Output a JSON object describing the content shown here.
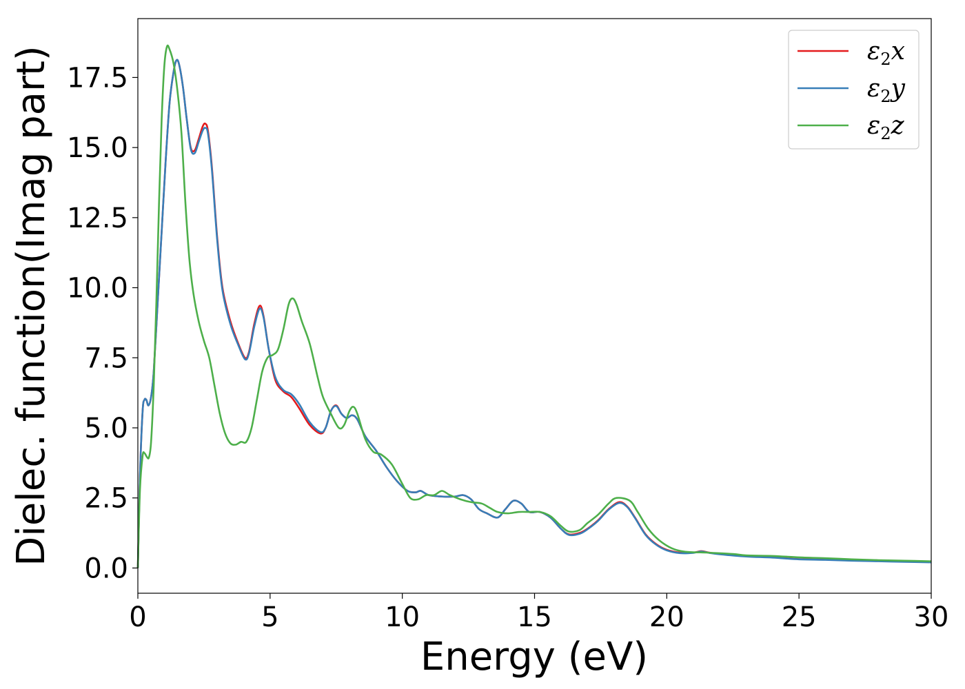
{
  "chart_data": {
    "type": "line",
    "xlabel": "Energy (eV)",
    "ylabel": "Dielec. function(Imag part)",
    "xlim": [
      0,
      30
    ],
    "ylim": [
      -0.9,
      19.6
    ],
    "xticks": [
      0,
      5,
      10,
      15,
      20,
      25,
      30
    ],
    "xtick_labels": [
      "0",
      "5",
      "10",
      "15",
      "20",
      "25",
      "30"
    ],
    "yticks": [
      0,
      2.5,
      5,
      7.5,
      10,
      12.5,
      15,
      17.5
    ],
    "ytick_labels": [
      "0.0",
      "2.5",
      "5.0",
      "7.5",
      "10.0",
      "12.5",
      "15.0",
      "17.5"
    ],
    "grid": false,
    "legend_position": "top-right",
    "series": [
      {
        "name_base": "ε",
        "name_sub": "2",
        "name_axis": "x",
        "color": "#e41a1c",
        "points": [
          [
            0,
            0
          ],
          [
            0.08,
            3.3
          ],
          [
            0.18,
            5.6
          ],
          [
            0.25,
            6.0
          ],
          [
            0.32,
            6.0
          ],
          [
            0.4,
            5.8
          ],
          [
            0.5,
            6.1
          ],
          [
            0.6,
            7.0
          ],
          [
            0.75,
            9.5
          ],
          [
            0.9,
            12.0
          ],
          [
            1.05,
            14.5
          ],
          [
            1.2,
            16.6
          ],
          [
            1.35,
            17.7
          ],
          [
            1.45,
            18.1
          ],
          [
            1.55,
            18.0
          ],
          [
            1.7,
            17.2
          ],
          [
            1.85,
            16.0
          ],
          [
            2.0,
            15.0
          ],
          [
            2.15,
            14.9
          ],
          [
            2.3,
            15.3
          ],
          [
            2.45,
            15.75
          ],
          [
            2.55,
            15.85
          ],
          [
            2.65,
            15.6
          ],
          [
            2.8,
            14.3
          ],
          [
            3.0,
            11.8
          ],
          [
            3.2,
            10.0
          ],
          [
            3.5,
            8.8
          ],
          [
            3.8,
            8.0
          ],
          [
            4.05,
            7.5
          ],
          [
            4.2,
            7.7
          ],
          [
            4.4,
            8.7
          ],
          [
            4.6,
            9.35
          ],
          [
            4.75,
            9.0
          ],
          [
            4.95,
            7.8
          ],
          [
            5.2,
            6.7
          ],
          [
            5.5,
            6.3
          ],
          [
            5.8,
            6.1
          ],
          [
            6.1,
            5.7
          ],
          [
            6.5,
            5.1
          ],
          [
            6.9,
            4.8
          ],
          [
            7.1,
            5.0
          ],
          [
            7.3,
            5.6
          ],
          [
            7.5,
            5.8
          ],
          [
            7.7,
            5.5
          ],
          [
            7.9,
            5.35
          ],
          [
            8.1,
            5.45
          ],
          [
            8.3,
            5.3
          ],
          [
            8.6,
            4.7
          ],
          [
            9.0,
            4.2
          ],
          [
            9.4,
            3.6
          ],
          [
            9.8,
            3.1
          ],
          [
            10.2,
            2.75
          ],
          [
            10.5,
            2.7
          ],
          [
            10.7,
            2.75
          ],
          [
            11.0,
            2.6
          ],
          [
            11.5,
            2.55
          ],
          [
            12.0,
            2.55
          ],
          [
            12.3,
            2.6
          ],
          [
            12.6,
            2.45
          ],
          [
            12.9,
            2.1
          ],
          [
            13.2,
            1.95
          ],
          [
            13.6,
            1.8
          ],
          [
            13.9,
            2.1
          ],
          [
            14.2,
            2.4
          ],
          [
            14.5,
            2.3
          ],
          [
            14.8,
            2.0
          ],
          [
            15.2,
            2.0
          ],
          [
            15.6,
            1.8
          ],
          [
            16.0,
            1.4
          ],
          [
            16.3,
            1.2
          ],
          [
            16.7,
            1.25
          ],
          [
            17.0,
            1.4
          ],
          [
            17.4,
            1.7
          ],
          [
            17.8,
            2.1
          ],
          [
            18.2,
            2.35
          ],
          [
            18.5,
            2.2
          ],
          [
            18.8,
            1.8
          ],
          [
            19.2,
            1.2
          ],
          [
            19.6,
            0.85
          ],
          [
            20.0,
            0.65
          ],
          [
            20.5,
            0.55
          ],
          [
            21.0,
            0.55
          ],
          [
            21.3,
            0.6
          ],
          [
            21.6,
            0.55
          ],
          [
            22.0,
            0.5
          ],
          [
            23.0,
            0.42
          ],
          [
            24.0,
            0.38
          ],
          [
            25.0,
            0.32
          ],
          [
            26.0,
            0.3
          ],
          [
            27.0,
            0.27
          ],
          [
            28.0,
            0.25
          ],
          [
            29.0,
            0.23
          ],
          [
            30.0,
            0.21
          ]
        ]
      },
      {
        "name_base": "ε",
        "name_sub": "2",
        "name_axis": "y",
        "color": "#377eb8",
        "points": [
          [
            0,
            0
          ],
          [
            0.08,
            3.3
          ],
          [
            0.18,
            5.6
          ],
          [
            0.25,
            6.0
          ],
          [
            0.32,
            6.0
          ],
          [
            0.4,
            5.8
          ],
          [
            0.5,
            6.1
          ],
          [
            0.6,
            7.0
          ],
          [
            0.75,
            9.5
          ],
          [
            0.9,
            12.0
          ],
          [
            1.05,
            14.5
          ],
          [
            1.2,
            16.6
          ],
          [
            1.35,
            17.7
          ],
          [
            1.45,
            18.1
          ],
          [
            1.55,
            18.0
          ],
          [
            1.7,
            17.2
          ],
          [
            1.85,
            16.0
          ],
          [
            2.0,
            14.95
          ],
          [
            2.15,
            14.8
          ],
          [
            2.3,
            15.2
          ],
          [
            2.45,
            15.6
          ],
          [
            2.55,
            15.7
          ],
          [
            2.65,
            15.5
          ],
          [
            2.8,
            14.2
          ],
          [
            3.0,
            11.7
          ],
          [
            3.2,
            9.9
          ],
          [
            3.5,
            8.7
          ],
          [
            3.8,
            7.95
          ],
          [
            4.05,
            7.45
          ],
          [
            4.2,
            7.65
          ],
          [
            4.4,
            8.6
          ],
          [
            4.6,
            9.25
          ],
          [
            4.75,
            8.95
          ],
          [
            4.95,
            7.8
          ],
          [
            5.2,
            6.8
          ],
          [
            5.5,
            6.35
          ],
          [
            5.8,
            6.2
          ],
          [
            6.1,
            5.85
          ],
          [
            6.5,
            5.2
          ],
          [
            6.9,
            4.85
          ],
          [
            7.1,
            5.0
          ],
          [
            7.3,
            5.6
          ],
          [
            7.5,
            5.78
          ],
          [
            7.7,
            5.5
          ],
          [
            7.9,
            5.35
          ],
          [
            8.1,
            5.45
          ],
          [
            8.3,
            5.3
          ],
          [
            8.6,
            4.7
          ],
          [
            9.0,
            4.2
          ],
          [
            9.4,
            3.6
          ],
          [
            9.8,
            3.1
          ],
          [
            10.2,
            2.75
          ],
          [
            10.5,
            2.7
          ],
          [
            10.7,
            2.75
          ],
          [
            11.0,
            2.6
          ],
          [
            11.5,
            2.55
          ],
          [
            12.0,
            2.55
          ],
          [
            12.3,
            2.6
          ],
          [
            12.6,
            2.45
          ],
          [
            12.9,
            2.1
          ],
          [
            13.2,
            1.95
          ],
          [
            13.6,
            1.8
          ],
          [
            13.9,
            2.1
          ],
          [
            14.2,
            2.4
          ],
          [
            14.5,
            2.3
          ],
          [
            14.8,
            2.0
          ],
          [
            15.2,
            2.0
          ],
          [
            15.6,
            1.8
          ],
          [
            16.0,
            1.4
          ],
          [
            16.3,
            1.18
          ],
          [
            16.7,
            1.22
          ],
          [
            17.0,
            1.38
          ],
          [
            17.4,
            1.68
          ],
          [
            17.8,
            2.08
          ],
          [
            18.2,
            2.32
          ],
          [
            18.5,
            2.18
          ],
          [
            18.8,
            1.78
          ],
          [
            19.2,
            1.18
          ],
          [
            19.6,
            0.83
          ],
          [
            20.0,
            0.63
          ],
          [
            20.5,
            0.53
          ],
          [
            21.0,
            0.54
          ],
          [
            21.3,
            0.59
          ],
          [
            21.6,
            0.54
          ],
          [
            22.0,
            0.49
          ],
          [
            23.0,
            0.41
          ],
          [
            24.0,
            0.37
          ],
          [
            25.0,
            0.31
          ],
          [
            26.0,
            0.29
          ],
          [
            27.0,
            0.26
          ],
          [
            28.0,
            0.24
          ],
          [
            29.0,
            0.22
          ],
          [
            30.0,
            0.2
          ]
        ]
      },
      {
        "name_base": "ε",
        "name_sub": "2",
        "name_axis": "z",
        "color": "#4daf4a",
        "points": [
          [
            0,
            0
          ],
          [
            0.08,
            2.8
          ],
          [
            0.18,
            4.0
          ],
          [
            0.25,
            4.1
          ],
          [
            0.35,
            3.95
          ],
          [
            0.42,
            3.95
          ],
          [
            0.5,
            4.5
          ],
          [
            0.6,
            6.5
          ],
          [
            0.7,
            9.5
          ],
          [
            0.8,
            13.0
          ],
          [
            0.9,
            16.0
          ],
          [
            1.0,
            17.9
          ],
          [
            1.1,
            18.6
          ],
          [
            1.2,
            18.5
          ],
          [
            1.35,
            18.0
          ],
          [
            1.5,
            17.0
          ],
          [
            1.65,
            15.5
          ],
          [
            1.8,
            13.0
          ],
          [
            1.95,
            11.0
          ],
          [
            2.1,
            9.8
          ],
          [
            2.3,
            8.8
          ],
          [
            2.5,
            8.1
          ],
          [
            2.7,
            7.5
          ],
          [
            2.9,
            6.5
          ],
          [
            3.1,
            5.5
          ],
          [
            3.3,
            4.8
          ],
          [
            3.5,
            4.45
          ],
          [
            3.7,
            4.4
          ],
          [
            3.9,
            4.5
          ],
          [
            4.1,
            4.5
          ],
          [
            4.3,
            5.0
          ],
          [
            4.5,
            6.0
          ],
          [
            4.7,
            7.0
          ],
          [
            4.9,
            7.5
          ],
          [
            5.1,
            7.6
          ],
          [
            5.3,
            7.8
          ],
          [
            5.5,
            8.5
          ],
          [
            5.7,
            9.4
          ],
          [
            5.85,
            9.62
          ],
          [
            6.0,
            9.4
          ],
          [
            6.2,
            8.8
          ],
          [
            6.5,
            8.0
          ],
          [
            6.8,
            6.8
          ],
          [
            7.0,
            6.1
          ],
          [
            7.3,
            5.5
          ],
          [
            7.6,
            5.0
          ],
          [
            7.8,
            5.1
          ],
          [
            8.0,
            5.6
          ],
          [
            8.15,
            5.75
          ],
          [
            8.3,
            5.5
          ],
          [
            8.6,
            4.6
          ],
          [
            8.9,
            4.15
          ],
          [
            9.2,
            4.05
          ],
          [
            9.6,
            3.7
          ],
          [
            10.0,
            3.0
          ],
          [
            10.3,
            2.5
          ],
          [
            10.6,
            2.45
          ],
          [
            10.9,
            2.6
          ],
          [
            11.2,
            2.6
          ],
          [
            11.5,
            2.75
          ],
          [
            11.8,
            2.6
          ],
          [
            12.2,
            2.45
          ],
          [
            12.6,
            2.35
          ],
          [
            13.0,
            2.3
          ],
          [
            13.3,
            2.15
          ],
          [
            13.6,
            2.0
          ],
          [
            14.0,
            1.95
          ],
          [
            14.4,
            2.0
          ],
          [
            14.8,
            2.0
          ],
          [
            15.2,
            2.0
          ],
          [
            15.6,
            1.85
          ],
          [
            16.0,
            1.5
          ],
          [
            16.3,
            1.3
          ],
          [
            16.7,
            1.35
          ],
          [
            17.0,
            1.6
          ],
          [
            17.4,
            1.9
          ],
          [
            17.8,
            2.3
          ],
          [
            18.1,
            2.5
          ],
          [
            18.6,
            2.4
          ],
          [
            18.9,
            2.0
          ],
          [
            19.3,
            1.4
          ],
          [
            19.7,
            1.0
          ],
          [
            20.2,
            0.7
          ],
          [
            20.7,
            0.58
          ],
          [
            21.5,
            0.55
          ],
          [
            22.5,
            0.5
          ],
          [
            23.0,
            0.45
          ],
          [
            24.0,
            0.43
          ],
          [
            25.0,
            0.38
          ],
          [
            26.0,
            0.35
          ],
          [
            27.0,
            0.31
          ],
          [
            28.0,
            0.28
          ],
          [
            29.0,
            0.26
          ],
          [
            30.0,
            0.24
          ]
        ]
      }
    ]
  }
}
